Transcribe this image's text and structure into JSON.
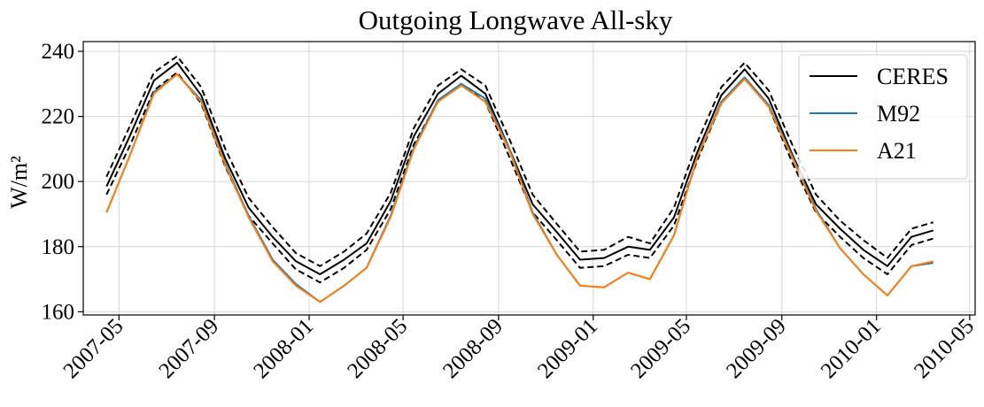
{
  "chart_data": {
    "type": "line",
    "title": "Outgoing Longwave All-sky",
    "ylabel": "W/m²",
    "xlabel": "",
    "ylim": [
      159,
      243
    ],
    "xlim": [
      "2007-03-16",
      "2010-05-08"
    ],
    "yticks": [
      160,
      180,
      200,
      220,
      240
    ],
    "xticks": [
      "2007-05",
      "2007-09",
      "2008-01",
      "2008-05",
      "2008-09",
      "2009-01",
      "2009-05",
      "2009-09",
      "2010-01",
      "2010-05"
    ],
    "grid": true,
    "legend": "top-right",
    "x": [
      "2007-04-15",
      "2007-05-15",
      "2007-06-15",
      "2007-07-15",
      "2007-08-15",
      "2007-09-15",
      "2007-10-15",
      "2007-11-15",
      "2007-12-15",
      "2008-01-15",
      "2008-02-15",
      "2008-03-15",
      "2008-04-15",
      "2008-05-15",
      "2008-06-15",
      "2008-07-15",
      "2008-08-15",
      "2008-09-15",
      "2008-10-15",
      "2008-11-15",
      "2008-12-15",
      "2009-01-15",
      "2009-02-15",
      "2009-03-15",
      "2009-04-15",
      "2009-05-15",
      "2009-06-15",
      "2009-07-15",
      "2009-08-15",
      "2009-09-15",
      "2009-10-15",
      "2009-11-15",
      "2009-12-15",
      "2010-01-15",
      "2010-02-15",
      "2010-03-15"
    ],
    "series": [
      {
        "name": "CERES",
        "color": "#000000",
        "style": "solid",
        "values": [
          198.5,
          214,
          231,
          236.5,
          226.5,
          207,
          192,
          183,
          175.5,
          171.5,
          176,
          181,
          194,
          214,
          227,
          232.5,
          227,
          210,
          193,
          184.5,
          176,
          176.5,
          180,
          179,
          189,
          209,
          226.5,
          234.5,
          225.5,
          208,
          193,
          185.5,
          179,
          174,
          183,
          185
        ]
      },
      {
        "name": "",
        "color": "#000000",
        "style": "dashed",
        "values": [
          201.5,
          217,
          233.5,
          238.5,
          229,
          210,
          195,
          186,
          178,
          174,
          178.5,
          184,
          196.5,
          216.5,
          229.5,
          234.5,
          229.5,
          213,
          196,
          187,
          178.5,
          179,
          183,
          181,
          192,
          212,
          229,
          236.5,
          228,
          211,
          196,
          188,
          182,
          176.5,
          185.5,
          187.5
        ]
      },
      {
        "name": "",
        "color": "#000000",
        "style": "dashed",
        "values": [
          196,
          211,
          228,
          233.5,
          224,
          204.5,
          189.5,
          181,
          173,
          169,
          173.5,
          179,
          191.5,
          211.5,
          224.5,
          230,
          224.5,
          207.5,
          190.5,
          182,
          173.5,
          174,
          177.5,
          176.5,
          186.5,
          206.5,
          224,
          232,
          223,
          205.5,
          190.5,
          183,
          176.5,
          171.5,
          180.5,
          182.5
        ]
      },
      {
        "name": "M92",
        "color": "#1f77b4",
        "style": "solid",
        "values": [
          190.5,
          208,
          227.5,
          233,
          225,
          205.5,
          189.5,
          176,
          168.5,
          163,
          168,
          173.5,
          189.5,
          210.5,
          225,
          230,
          225.5,
          210,
          190.5,
          177.5,
          168,
          167.5,
          172,
          170,
          183.5,
          207.5,
          224.5,
          232,
          223.5,
          207.5,
          191.5,
          179.5,
          171.5,
          165,
          174,
          175
        ]
      },
      {
        "name": "A21",
        "color": "#ff7f0e",
        "style": "solid",
        "values": [
          190.5,
          208,
          227,
          233,
          224.5,
          205,
          189,
          175.5,
          168,
          163,
          168,
          173.5,
          189,
          210,
          224.5,
          229.5,
          224.5,
          209.5,
          190,
          177.5,
          168,
          167.5,
          172,
          170,
          183.5,
          207.5,
          224,
          231.5,
          223,
          207,
          191,
          179.5,
          171.5,
          165,
          174,
          175.5
        ]
      }
    ]
  }
}
